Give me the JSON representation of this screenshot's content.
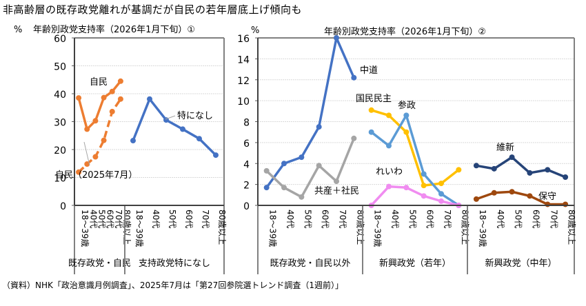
{
  "title": "非高齢層の既存政党離れが基調だが自民の若年層底上げ傾向も",
  "source": "（資料）NHK「政治意識月例調査」、2025年7月は「第27回参院選トレンド調査（1週前）」",
  "chart_data": [
    {
      "type": "line",
      "title": "年齢別政党支持率（2026年1月下旬）①",
      "ylabel": "%",
      "ylim": [
        0,
        60
      ],
      "yticks": [
        0,
        10,
        20,
        30,
        40,
        50,
        60
      ],
      "grid": true,
      "categories": [
        "18～39歳",
        "40代",
        "50代",
        "60代",
        "70代",
        "80歳以上"
      ],
      "groups": [
        {
          "label": "既存政党・自民",
          "series": [
            {
              "name": "自民",
              "color": "#ED7D31",
              "dashed": false,
              "values": [
                38.5,
                27.3,
                30.3,
                38.6,
                40.8,
                44.5
              ]
            },
            {
              "name": "自民（2025年7月）",
              "color": "#ED7D31",
              "dashed": true,
              "values": [
                11.9,
                14.8,
                17.4,
                23.3,
                33.6,
                38.1
              ]
            }
          ]
        },
        {
          "label": "支持政党特になし",
          "series": [
            {
              "name": "特になし",
              "color": "#4472C4",
              "dashed": false,
              "values": [
                23.2,
                38.1,
                30.6,
                27.3,
                23.9,
                18.0
              ]
            }
          ]
        }
      ]
    },
    {
      "type": "line",
      "title": "年齢別政党支持率（2026年1月下旬）②",
      "ylabel": "%",
      "ylim": [
        0,
        16
      ],
      "yticks": [
        0,
        2,
        4,
        6,
        8,
        10,
        12,
        14,
        16
      ],
      "grid": true,
      "categories": [
        "18～39歳",
        "40代",
        "50代",
        "60代",
        "70代",
        "80歳以上"
      ],
      "groups": [
        {
          "label": "既存政党・自民以外",
          "series": [
            {
              "name": "中道",
              "color": "#4472C4",
              "values": [
                1.7,
                4.0,
                4.6,
                7.5,
                16.0,
                12.2
              ]
            },
            {
              "name": "共産＋社民",
              "color": "#A5A5A5",
              "values": [
                3.3,
                1.7,
                0.8,
                3.8,
                2.3,
                6.4
              ]
            }
          ]
        },
        {
          "label": "新興政党（若年）",
          "series": [
            {
              "name": "国民民主",
              "color": "#FFC000",
              "values": [
                9.1,
                8.6,
                7.0,
                1.9,
                2.1,
                3.4
              ]
            },
            {
              "name": "参政",
              "color": "#5B9BD5",
              "values": [
                7.0,
                5.7,
                8.6,
                3.0,
                1.1,
                0.0
              ]
            },
            {
              "name": "れいわ",
              "color": "#F08CF0",
              "values": [
                0.0,
                1.8,
                1.7,
                0.9,
                0.4,
                0.0
              ]
            }
          ]
        },
        {
          "label": "新興政党（中年）",
          "series": [
            {
              "name": "維新",
              "color": "#264478",
              "values": [
                3.8,
                3.5,
                4.6,
                3.1,
                3.4,
                2.7
              ]
            },
            {
              "name": "保守",
              "color": "#9E480E",
              "values": [
                0.6,
                1.2,
                1.3,
                0.9,
                0.1,
                0.1
              ]
            }
          ]
        }
      ]
    }
  ]
}
